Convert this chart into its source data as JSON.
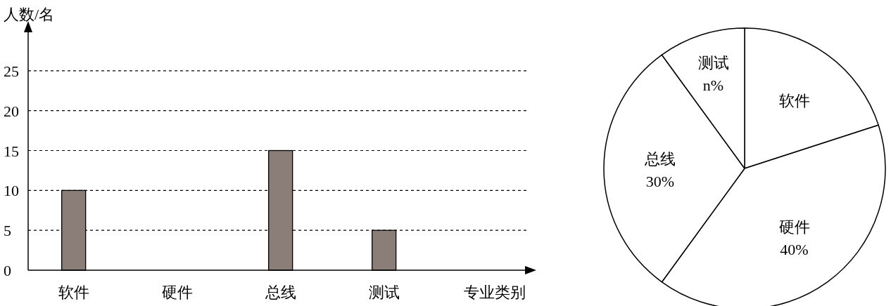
{
  "chart_data": [
    {
      "type": "bar",
      "ylabel": "人数/名",
      "xlabel": "专业类别",
      "categories": [
        "软件",
        "硬件",
        "总线",
        "测试"
      ],
      "values": [
        10,
        null,
        15,
        5
      ],
      "color": "#8b7d78",
      "ylim": [
        0,
        30
      ],
      "yticks": [
        0,
        5,
        10,
        15,
        20,
        25
      ],
      "grid": "y"
    },
    {
      "type": "pie",
      "categories": [
        "软件",
        "硬件",
        "总线",
        "测试"
      ],
      "values": [
        20,
        40,
        30,
        10
      ],
      "colors": [
        "#ffffff",
        "#ffffff",
        "#ffffff",
        "#ffffff"
      ],
      "value_labels": [
        null,
        "40%",
        "30%",
        "n%"
      ]
    }
  ]
}
